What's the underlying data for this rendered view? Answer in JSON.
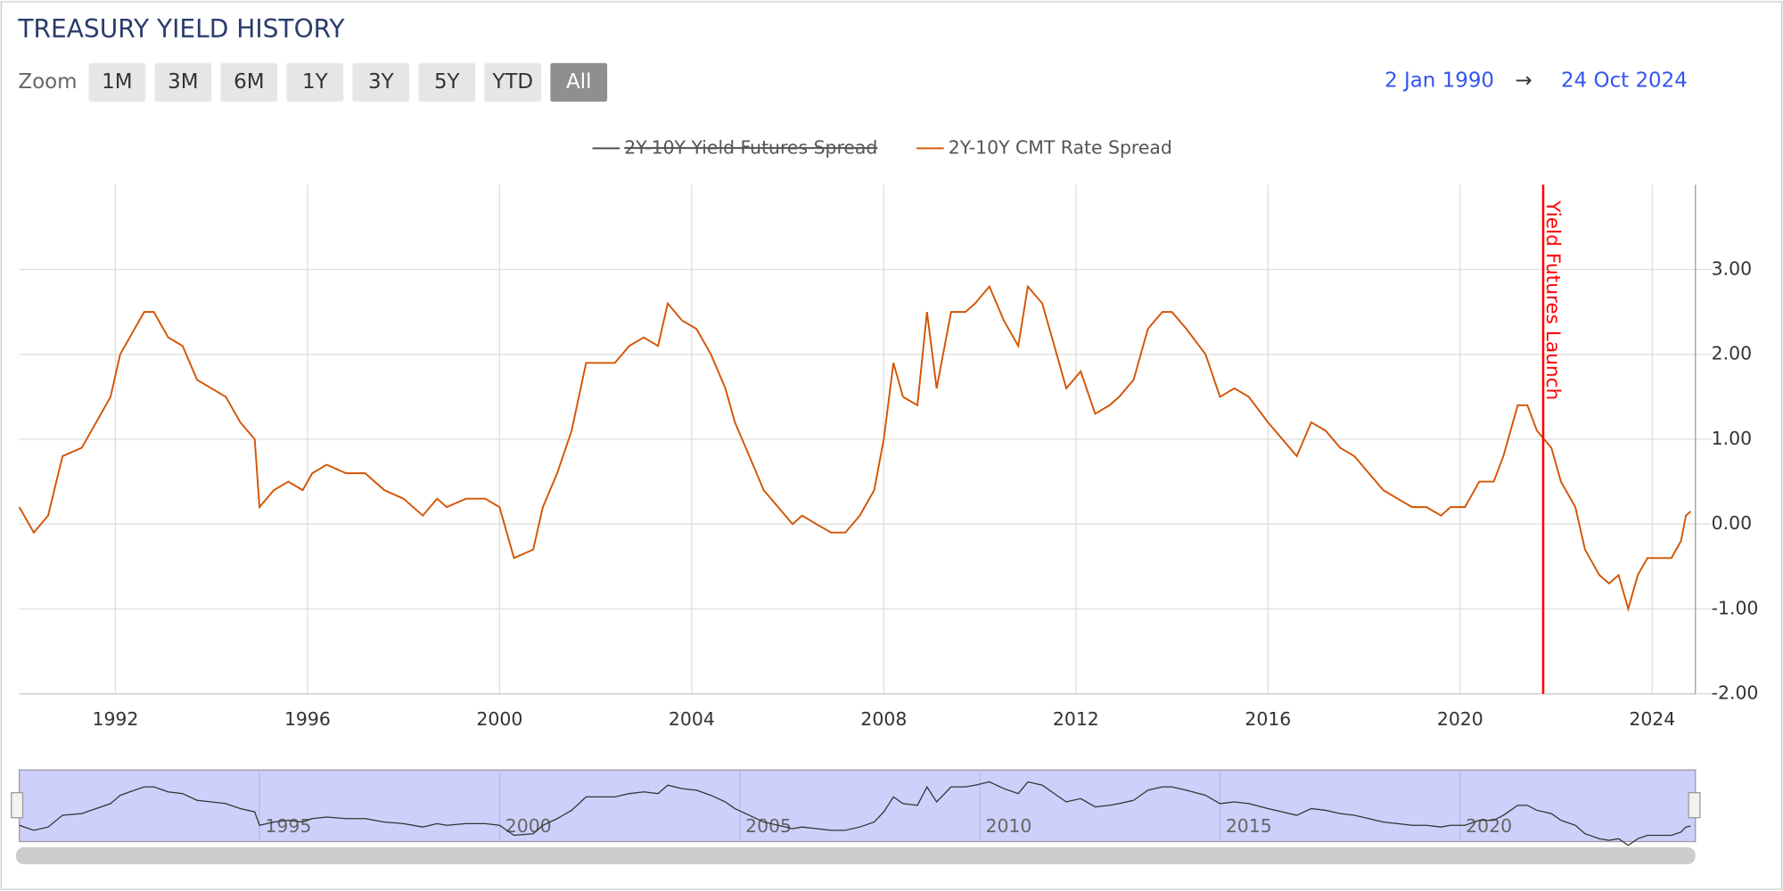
{
  "chart_data": {
    "type": "line",
    "title": "TREASURY YIELD HISTORY",
    "zoom_label": "Zoom",
    "zoom_buttons": [
      "1M",
      "3M",
      "6M",
      "1Y",
      "3Y",
      "5Y",
      "YTD",
      "All"
    ],
    "selected_button": 7,
    "range_from": "2 Jan 1990",
    "range_arrow": "→",
    "range_to": "24 Oct 2024",
    "hidden_series": [
      {
        "name": "2Y-10Y Yield Futures Spread",
        "color": "#434348"
      }
    ],
    "x": [
      1990.0,
      1990.3,
      1990.6,
      1990.9,
      1991.3,
      1991.6,
      1991.9,
      1992.1,
      1992.3,
      1992.6,
      1992.8,
      1993.1,
      1993.4,
      1993.7,
      1994.0,
      1994.3,
      1994.6,
      1994.9,
      1995.0,
      1995.3,
      1995.6,
      1995.9,
      1996.1,
      1996.4,
      1996.8,
      1997.2,
      1997.6,
      1998.0,
      1998.4,
      1998.7,
      1998.9,
      1999.3,
      1999.7,
      2000.0,
      2000.3,
      2000.7,
      2000.9,
      2001.2,
      2001.5,
      2001.8,
      2002.1,
      2002.4,
      2002.7,
      2003.0,
      2003.3,
      2003.5,
      2003.8,
      2004.1,
      2004.4,
      2004.7,
      2004.9,
      2005.2,
      2005.5,
      2005.8,
      2006.1,
      2006.3,
      2006.6,
      2006.9,
      2007.2,
      2007.5,
      2007.8,
      2008.0,
      2008.2,
      2008.4,
      2008.7,
      2008.9,
      2009.1,
      2009.4,
      2009.7,
      2009.9,
      2010.2,
      2010.5,
      2010.8,
      2011.0,
      2011.3,
      2011.6,
      2011.8,
      2012.1,
      2012.4,
      2012.7,
      2012.9,
      2013.2,
      2013.5,
      2013.8,
      2014.0,
      2014.3,
      2014.7,
      2015.0,
      2015.3,
      2015.6,
      2016.0,
      2016.3,
      2016.6,
      2016.9,
      2017.2,
      2017.5,
      2017.8,
      2018.1,
      2018.4,
      2018.7,
      2019.0,
      2019.3,
      2019.6,
      2019.8,
      2020.1,
      2020.4,
      2020.7,
      2020.9,
      2021.2,
      2021.4,
      2021.6,
      2021.9,
      2022.1,
      2022.4,
      2022.6,
      2022.9,
      2023.1,
      2023.3,
      2023.5,
      2023.7,
      2023.9,
      2024.1,
      2024.4,
      2024.6,
      2024.7,
      2024.8
    ],
    "series": [
      {
        "name": "2Y-10Y CMT Rate Spread",
        "color": "#d35400",
        "values": [
          0.2,
          -0.1,
          0.1,
          0.8,
          0.9,
          1.2,
          1.5,
          2.0,
          2.2,
          2.5,
          2.5,
          2.2,
          2.1,
          1.7,
          1.6,
          1.5,
          1.2,
          1.0,
          0.2,
          0.4,
          0.5,
          0.4,
          0.6,
          0.7,
          0.6,
          0.6,
          0.4,
          0.3,
          0.1,
          0.3,
          0.2,
          0.3,
          0.3,
          0.2,
          -0.4,
          -0.3,
          0.2,
          0.6,
          1.1,
          1.9,
          1.9,
          1.9,
          2.1,
          2.2,
          2.1,
          2.6,
          2.4,
          2.3,
          2.0,
          1.6,
          1.2,
          0.8,
          0.4,
          0.2,
          0.0,
          0.1,
          0.0,
          -0.1,
          -0.1,
          0.1,
          0.4,
          1.0,
          1.9,
          1.5,
          1.4,
          2.5,
          1.6,
          2.5,
          2.5,
          2.6,
          2.8,
          2.4,
          2.1,
          2.8,
          2.6,
          2.0,
          1.6,
          1.8,
          1.3,
          1.4,
          1.5,
          1.7,
          2.3,
          2.5,
          2.5,
          2.3,
          2.0,
          1.5,
          1.6,
          1.5,
          1.2,
          1.0,
          0.8,
          1.2,
          1.1,
          0.9,
          0.8,
          0.6,
          0.4,
          0.3,
          0.2,
          0.2,
          0.1,
          0.2,
          0.2,
          0.5,
          0.5,
          0.8,
          1.4,
          1.4,
          1.1,
          0.9,
          0.5,
          0.2,
          -0.3,
          -0.6,
          -0.7,
          -0.6,
          -1.0,
          -0.6,
          -0.4,
          -0.4,
          -0.4,
          -0.2,
          0.1,
          0.15
        ]
      }
    ],
    "xlim": [
      1990.0,
      2024.9
    ],
    "xticks": [
      1992,
      1996,
      2000,
      2004,
      2008,
      2012,
      2016,
      2020,
      2024
    ],
    "ylim": [
      -2,
      4
    ],
    "yticks": [
      {
        "value": -2,
        "label": "-2.00"
      },
      {
        "value": -1,
        "label": "-1.00"
      },
      {
        "value": 0,
        "label": "0.00"
      },
      {
        "value": 1,
        "label": "1.00"
      },
      {
        "value": 2,
        "label": "2.00"
      },
      {
        "value": 3,
        "label": "3.00"
      }
    ],
    "grid": true,
    "plot_line": {
      "x": 2021.73,
      "label": "Yield Futures Launch",
      "color": "#ff0000"
    },
    "navigator_xticks": [
      1995,
      2000,
      2005,
      2010,
      2015,
      2020
    ]
  }
}
